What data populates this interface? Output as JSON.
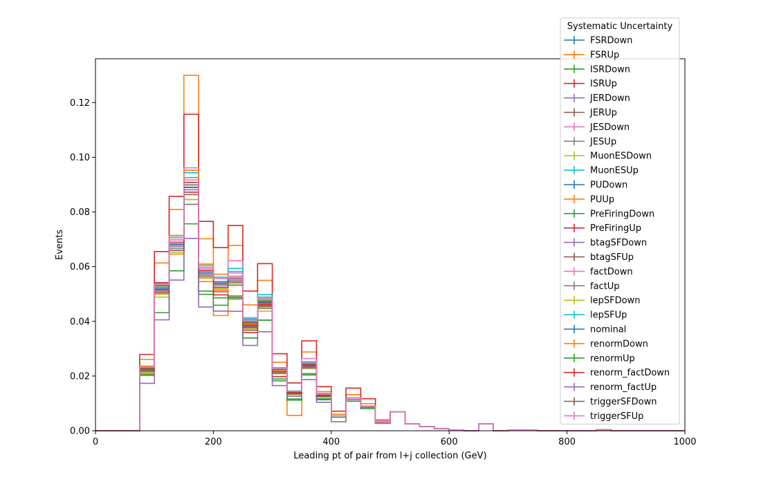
{
  "chart_data": {
    "type": "line",
    "xlabel": "Leading pt of pair from l+j collection (GeV)",
    "ylabel": "Events",
    "xlim": [
      0,
      1000
    ],
    "ylim": [
      0,
      0.136
    ],
    "xticks": [
      0,
      200,
      400,
      600,
      800,
      1000
    ],
    "yticks": [
      0.0,
      0.02,
      0.04,
      0.06,
      0.08,
      0.1,
      0.12
    ],
    "ytick_labels": [
      "0.00",
      "0.02",
      "0.04",
      "0.06",
      "0.08",
      "0.10",
      "0.12"
    ],
    "grid": false,
    "legend": {
      "title": "Systematic Uncertainty",
      "placement": "top-right",
      "entries": [
        "FSRDown",
        "FSRUp",
        "ISRDown",
        "ISRUp",
        "JERDown",
        "JERUp",
        "JESDown",
        "JESUp",
        "MuonESDown",
        "MuonESUp",
        "PUDown",
        "PUUp",
        "PreFiringDown",
        "PreFiringUp",
        "btagSFDown",
        "btagSFUp",
        "factDown",
        "factUp",
        "lepSFDown",
        "lepSFUp",
        "nominal",
        "renormDown",
        "renormUp",
        "renorm_factDown",
        "renorm_factUp",
        "triggerSFDown",
        "triggerSFUp"
      ]
    },
    "bin_edges": [
      0,
      25,
      50,
      75,
      100,
      125,
      150,
      175,
      200,
      225,
      250,
      275,
      300,
      325,
      350,
      375,
      400,
      425,
      450,
      475,
      500,
      525,
      550,
      575,
      600,
      625,
      650,
      675,
      700,
      725,
      750,
      775,
      800,
      825,
      850,
      875,
      900,
      925,
      950,
      975,
      1000
    ],
    "nominal": [
      0,
      0,
      0,
      0.0225,
      0.052,
      0.068,
      0.089,
      0.058,
      0.054,
      0.056,
      0.039,
      0.047,
      0.022,
      0.014,
      0.024,
      0.013,
      0.0055,
      0.012,
      0.009,
      0.003,
      0.007,
      0.0025,
      0.0015,
      0.0008,
      0.0003,
      0,
      0.0025,
      0,
      0.0003,
      0.0003,
      0,
      0,
      0,
      0,
      0.0004,
      0,
      0,
      0,
      0,
      0
    ],
    "series": [
      {
        "name": "FSRDown",
        "color": "#1f77b4",
        "scale": [
          1.0,
          1.0,
          1.0,
          1.02,
          1.0,
          1.0,
          1.0,
          1.0,
          1.0,
          1.0,
          1.0,
          1.0,
          1.0,
          1.0,
          1.0,
          1.0,
          1.0,
          1.0,
          1.0,
          1.0
        ]
      },
      {
        "name": "FSRUp",
        "color": "#ff7f0e",
        "scale": [
          1.0,
          1.0,
          1.0,
          1.16,
          1.18,
          1.19,
          1.46,
          1.21,
          0.78,
          1.21,
          1.18,
          1.17,
          1.14,
          0.4,
          1.2,
          1.1,
          1.1,
          1.1,
          1.1,
          1.1
        ]
      },
      {
        "name": "ISRDown",
        "color": "#2ca02c",
        "scale": [
          1.0,
          1.0,
          1.0,
          0.92,
          0.83,
          0.86,
          0.85,
          0.86,
          0.85,
          0.86,
          0.87,
          0.86,
          0.86,
          0.8,
          0.85,
          0.9,
          0.9,
          0.9,
          0.9,
          0.9
        ]
      },
      {
        "name": "ISRUp",
        "color": "#d62728",
        "scale": [
          1.0,
          1.0,
          1.0,
          1.24,
          1.26,
          1.26,
          1.3,
          1.32,
          1.24,
          1.34,
          1.31,
          1.3,
          1.28,
          1.25,
          1.37,
          1.24,
          1.3,
          1.3,
          1.3,
          1.3
        ]
      },
      {
        "name": "JERDown",
        "color": "#9467bd",
        "scale": [
          1.0,
          1.0,
          1.0,
          0.97,
          0.99,
          0.99,
          1.0,
          0.99,
          1.0,
          0.99,
          0.98,
          0.98,
          0.98,
          0.98,
          0.98,
          0.98,
          1.0,
          1.0,
          1.0,
          1.0
        ]
      },
      {
        "name": "JERUp",
        "color": "#8c564b",
        "scale": [
          1.0,
          1.0,
          1.0,
          1.0,
          1.0,
          1.0,
          1.0,
          1.0,
          1.0,
          1.0,
          1.0,
          1.0,
          1.0,
          1.0,
          1.0,
          1.0,
          1.0,
          1.0,
          1.0,
          1.0
        ]
      },
      {
        "name": "JESDown",
        "color": "#e377c2",
        "scale": [
          1.0,
          1.0,
          1.0,
          0.97,
          1.02,
          1.02,
          1.03,
          1.02,
          1.0,
          1.11,
          1.06,
          1.04,
          1.05,
          1.02,
          1.05,
          1.05,
          1.0,
          1.0,
          1.0,
          1.0
        ]
      },
      {
        "name": "JESUp",
        "color": "#7f7f7f",
        "scale": [
          1.0,
          1.0,
          1.0,
          0.97,
          0.96,
          0.96,
          1.0,
          0.96,
          0.94,
          0.95,
          0.94,
          0.95,
          0.95,
          0.95,
          0.95,
          0.95,
          0.6,
          0.95,
          0.95,
          0.95
        ]
      },
      {
        "name": "MuonESDown",
        "color": "#bcbd22",
        "scale": [
          1.0,
          1.0,
          1.0,
          0.95,
          0.94,
          0.96,
          0.95,
          0.96,
          0.96,
          0.97,
          0.95,
          0.93,
          0.95,
          0.95,
          0.95,
          0.95,
          1.0,
          1.0,
          1.0,
          1.0
        ]
      },
      {
        "name": "MuonESUp",
        "color": "#17becf",
        "scale": [
          1.0,
          1.0,
          1.0,
          1.03,
          1.02,
          1.05,
          1.04,
          1.05,
          1.04,
          1.06,
          1.05,
          1.06,
          1.03,
          1.03,
          1.05,
          1.05,
          1.0,
          1.0,
          1.0,
          1.0
        ]
      },
      {
        "name": "PUDown",
        "color": "#1f77b4",
        "scale": [
          1.0,
          1.0,
          1.0,
          1.0,
          1.0,
          1.0,
          1.0,
          1.0,
          1.0,
          1.0,
          1.0,
          1.0,
          1.0,
          1.0,
          1.0,
          1.0,
          1.0,
          1.0,
          1.0,
          1.0
        ]
      },
      {
        "name": "PUUp",
        "color": "#ff7f0e",
        "scale": [
          1.0,
          1.0,
          1.0,
          0.93,
          0.96,
          0.95,
          0.93,
          0.94,
          0.95,
          0.96,
          0.96,
          0.96,
          0.95,
          0.95,
          0.95,
          0.95,
          1.0,
          1.0,
          1.0,
          1.0
        ]
      },
      {
        "name": "PreFiringDown",
        "color": "#2ca02c",
        "scale": [
          1.0,
          1.0,
          1.0,
          1.02,
          1.01,
          1.01,
          1.02,
          1.01,
          1.01,
          1.01,
          1.01,
          1.01,
          1.01,
          1.01,
          1.01,
          1.01,
          1.0,
          1.0,
          1.0,
          1.0
        ]
      },
      {
        "name": "PreFiringUp",
        "color": "#d62728",
        "scale": [
          1.0,
          1.0,
          1.0,
          0.98,
          0.99,
          0.99,
          0.98,
          0.99,
          0.99,
          0.99,
          0.99,
          0.99,
          0.99,
          0.99,
          0.99,
          0.99,
          1.0,
          1.0,
          1.0,
          1.0
        ]
      },
      {
        "name": "btagSFDown",
        "color": "#9467bd",
        "scale": [
          1.0,
          1.0,
          1.0,
          0.97,
          0.98,
          0.99,
          0.99,
          0.99,
          0.99,
          0.99,
          0.98,
          0.98,
          0.98,
          0.98,
          0.98,
          0.98,
          1.0,
          1.0,
          1.0,
          1.0
        ]
      },
      {
        "name": "btagSFUp",
        "color": "#8c564b",
        "scale": [
          1.0,
          1.0,
          1.0,
          1.03,
          1.02,
          1.01,
          1.01,
          1.01,
          1.01,
          1.01,
          1.02,
          1.02,
          1.02,
          1.02,
          1.02,
          1.02,
          1.0,
          1.0,
          1.0,
          1.0
        ]
      },
      {
        "name": "factDown",
        "color": "#e377c2",
        "scale": [
          1.0,
          1.0,
          1.0,
          1.0,
          1.04,
          1.02,
          1.08,
          1.0,
          0.98,
          1.01,
          1.0,
          1.0,
          1.0,
          1.0,
          1.1,
          1.05,
          1.0,
          1.0,
          1.0,
          1.0
        ]
      },
      {
        "name": "factUp",
        "color": "#7f7f7f",
        "scale": [
          1.0,
          1.0,
          1.0,
          0.98,
          0.96,
          0.98,
          0.93,
          0.98,
          0.99,
          0.98,
          0.96,
          0.96,
          0.95,
          0.95,
          0.95,
          0.95,
          1.0,
          1.0,
          1.0,
          1.0
        ]
      },
      {
        "name": "lepSFDown",
        "color": "#bcbd22",
        "scale": [
          1.0,
          1.0,
          1.0,
          0.96,
          0.96,
          0.96,
          0.95,
          0.96,
          0.96,
          0.96,
          0.96,
          0.96,
          0.96,
          0.96,
          0.96,
          0.96,
          1.0,
          1.0,
          1.0,
          1.0
        ]
      },
      {
        "name": "lepSFUp",
        "color": "#17becf",
        "scale": [
          1.0,
          1.0,
          1.0,
          1.04,
          1.04,
          1.04,
          1.06,
          1.04,
          1.04,
          1.04,
          1.04,
          1.04,
          1.04,
          1.04,
          1.04,
          1.04,
          1.0,
          1.0,
          1.0,
          1.0
        ]
      },
      {
        "name": "nominal",
        "color": "#1f77b4",
        "scale": [
          1.0,
          1.0,
          1.0,
          1.0,
          1.0,
          1.0,
          1.0,
          1.0,
          1.0,
          1.0,
          1.0,
          1.0,
          1.0,
          1.0,
          1.0,
          1.0,
          1.0,
          1.0,
          1.0,
          1.0
        ]
      },
      {
        "name": "renormDown",
        "color": "#ff7f0e",
        "scale": [
          1.0,
          1.0,
          1.0,
          1.05,
          1.03,
          1.05,
          1.07,
          1.05,
          1.06,
          1.0,
          1.0,
          1.02,
          1.0,
          1.0,
          1.0,
          1.0,
          1.0,
          1.0,
          1.0,
          1.0
        ]
      },
      {
        "name": "renormUp",
        "color": "#2ca02c",
        "scale": [
          1.0,
          1.0,
          1.0,
          0.9,
          0.83,
          0.86,
          0.85,
          0.88,
          0.9,
          0.88,
          0.87,
          0.86,
          0.83,
          0.83,
          0.87,
          0.87,
          1.0,
          1.0,
          1.0,
          1.0
        ]
      },
      {
        "name": "renorm_factDown",
        "color": "#d62728",
        "scale": [
          1.0,
          1.0,
          1.0,
          1.0,
          1.04,
          1.01,
          1.02,
          1.01,
          0.92,
          0.87,
          0.92,
          0.98,
          0.9,
          1.0,
          1.0,
          1.0,
          1.0,
          1.0,
          1.0,
          1.0
        ]
      },
      {
        "name": "renorm_factUp",
        "color": "#9467bd",
        "scale": [
          1.0,
          1.0,
          1.0,
          0.77,
          0.78,
          0.81,
          0.79,
          0.78,
          0.81,
          0.78,
          0.8,
          0.77,
          0.75,
          0.9,
          0.78,
          0.8,
          1.0,
          1.0,
          1.0,
          1.0
        ]
      },
      {
        "name": "triggerSFDown",
        "color": "#8c564b",
        "scale": [
          1.0,
          1.0,
          1.0,
          0.97,
          0.97,
          0.97,
          0.97,
          0.97,
          0.97,
          0.97,
          0.97,
          0.97,
          0.97,
          0.97,
          0.97,
          0.97,
          1.0,
          1.0,
          1.0,
          1.0
        ]
      },
      {
        "name": "triggerSFUp",
        "color": "#e377c2",
        "scale": [
          1.0,
          1.0,
          1.0,
          1.03,
          1.03,
          1.03,
          1.03,
          1.03,
          1.03,
          1.03,
          1.03,
          1.03,
          1.03,
          1.03,
          1.03,
          1.03,
          1.0,
          1.0,
          1.0,
          1.0
        ]
      }
    ]
  }
}
